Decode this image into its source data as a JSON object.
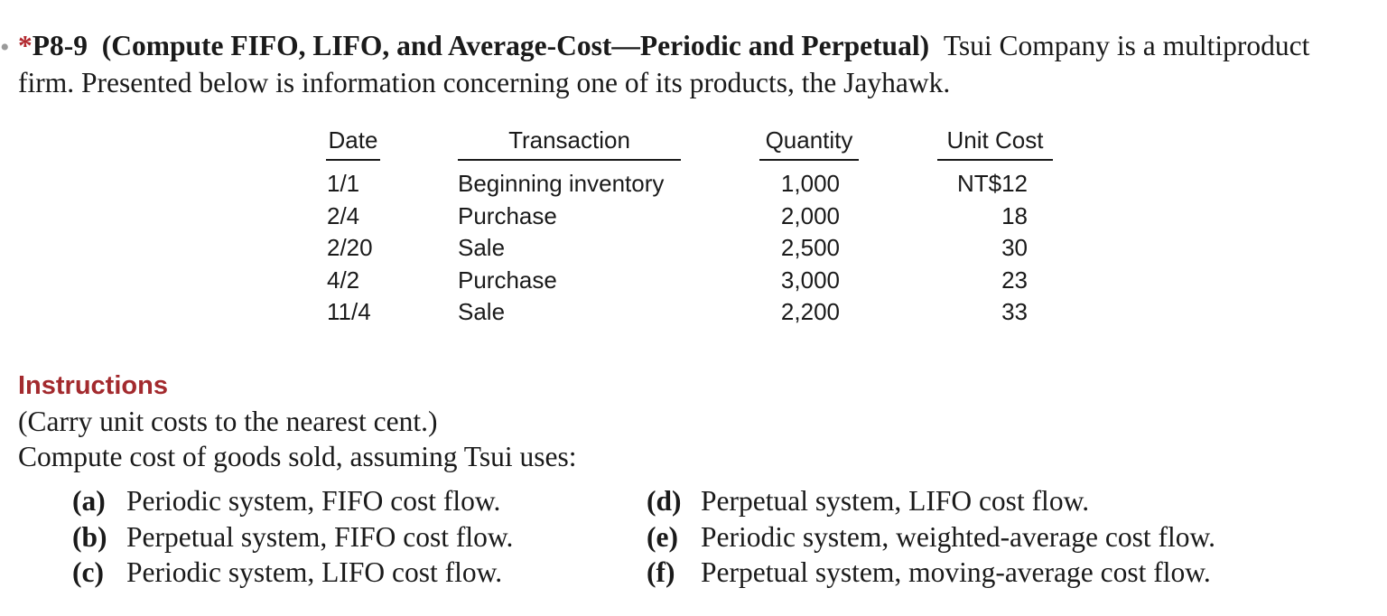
{
  "problem": {
    "star": "*",
    "number": "P8-9",
    "title": "(Compute FIFO, LIFO, and Average-Cost—Periodic and Perpetual)",
    "description": "Tsui Company is a multiproduct firm. Presented below is information concerning one of its products, the Jayhawk."
  },
  "table": {
    "headers": {
      "date": "Date",
      "transaction": "Transaction",
      "quantity": "Quantity",
      "unit_cost": "Unit Cost"
    },
    "rows": [
      {
        "date": "1/1",
        "transaction": "Beginning inventory",
        "quantity": "1,000",
        "unit_cost": "NT$12"
      },
      {
        "date": "2/4",
        "transaction": "Purchase",
        "quantity": "2,000",
        "unit_cost": "18"
      },
      {
        "date": "2/20",
        "transaction": "Sale",
        "quantity": "2,500",
        "unit_cost": "30"
      },
      {
        "date": "4/2",
        "transaction": "Purchase",
        "quantity": "3,000",
        "unit_cost": "23"
      },
      {
        "date": "11/4",
        "transaction": "Sale",
        "quantity": "2,200",
        "unit_cost": "33"
      }
    ]
  },
  "instructions": {
    "heading": "Instructions",
    "note": "(Carry unit costs to the nearest cent.)",
    "prompt": "Compute cost of goods sold, assuming Tsui uses:",
    "items": [
      {
        "label": "(a)",
        "text": "Periodic system, FIFO cost flow."
      },
      {
        "label": "(b)",
        "text": "Perpetual system, FIFO cost flow."
      },
      {
        "label": "(c)",
        "text": "Periodic system, LIFO cost flow."
      },
      {
        "label": "(d)",
        "text": "Perpetual system, LIFO cost flow."
      },
      {
        "label": "(e)",
        "text": "Periodic system, weighted-average cost flow."
      },
      {
        "label": "(f)",
        "text": "Perpetual system, moving-average cost flow."
      }
    ]
  }
}
